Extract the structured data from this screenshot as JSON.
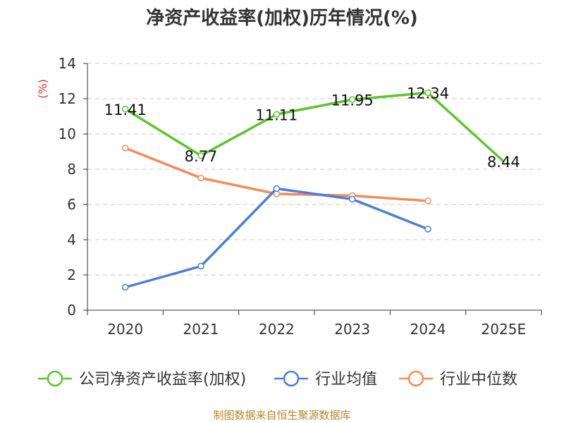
{
  "chart_data": {
    "type": "line",
    "title": "净资产收益率(加权)历年情况(%)",
    "ylabel": "(%)",
    "xlabel": "",
    "categories": [
      "2020",
      "2021",
      "2022",
      "2023",
      "2024",
      "2025E"
    ],
    "ylim": [
      0,
      14
    ],
    "yticks": [
      0,
      2,
      4,
      6,
      8,
      10,
      12,
      14
    ],
    "grid": true,
    "legend_position": "bottom",
    "series": [
      {
        "name": "公司净资产收益率(加权)",
        "color": "#5ec42e",
        "values": [
          11.41,
          8.77,
          11.11,
          11.95,
          12.34,
          8.44
        ],
        "labels": [
          "11.41",
          "8.77",
          "11.11",
          "11.95",
          "12.34",
          "8.44"
        ]
      },
      {
        "name": "行业均值",
        "color": "#4d7fd6",
        "values": [
          1.3,
          2.5,
          6.9,
          6.3,
          4.6,
          null
        ]
      },
      {
        "name": "行业中位数",
        "color": "#f48c5a",
        "values": [
          9.2,
          7.5,
          6.6,
          6.5,
          6.2,
          null
        ]
      }
    ],
    "source": "制图数据来自恒生聚源数据库"
  }
}
